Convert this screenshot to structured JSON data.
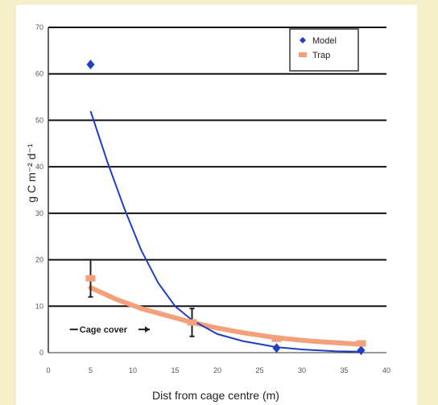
{
  "chart_data": {
    "type": "scatter",
    "title": "",
    "xlabel": "Dist from cage  centre  (m)",
    "ylabel": "g C m⁻² d⁻¹",
    "xlim": [
      0,
      40
    ],
    "ylim": [
      0,
      70
    ],
    "x_ticks": [
      0,
      5,
      10,
      15,
      20,
      25,
      30,
      35,
      40
    ],
    "y_ticks": [
      0,
      10,
      20,
      30,
      40,
      50,
      60,
      70
    ],
    "grid": "horizontal",
    "legend_position": "top-right",
    "series": [
      {
        "name": "Model",
        "marker": "diamond",
        "color": "#1f3fbf",
        "points": [
          {
            "x": 5,
            "y": 62
          },
          {
            "x": 27,
            "y": 1
          },
          {
            "x": 37,
            "y": 0.5
          }
        ]
      },
      {
        "name": "Trap",
        "marker": "square",
        "color": "#f4a07a",
        "points": [
          {
            "x": 5,
            "y": 16,
            "err": 4
          },
          {
            "x": 17,
            "y": 6.5,
            "err": 3
          },
          {
            "x": 27,
            "y": 3,
            "err": 0.5
          },
          {
            "x": 37,
            "y": 2,
            "err": 0.5
          }
        ]
      }
    ],
    "model_curve": {
      "color": "#1f3fbf",
      "points": [
        [
          5,
          52
        ],
        [
          7,
          41
        ],
        [
          9,
          31
        ],
        [
          11,
          22
        ],
        [
          13,
          15
        ],
        [
          15,
          10
        ],
        [
          17,
          7
        ],
        [
          20,
          4
        ],
        [
          23,
          2.5
        ],
        [
          27,
          1.2
        ],
        [
          30,
          0.7
        ],
        [
          34,
          0.3
        ],
        [
          37,
          0.2
        ]
      ]
    },
    "trap_curve": {
      "color": "#f4a07a",
      "points": [
        [
          5,
          14
        ],
        [
          8,
          11.5
        ],
        [
          11,
          9.5
        ],
        [
          14,
          8
        ],
        [
          17,
          6.5
        ],
        [
          20,
          5.3
        ],
        [
          23,
          4.3
        ],
        [
          27,
          3.2
        ],
        [
          31,
          2.5
        ],
        [
          37,
          1.8
        ]
      ]
    },
    "annotation": {
      "text": "Cage cover",
      "x_from": 3.5,
      "x_to": 12,
      "y": 5
    }
  }
}
